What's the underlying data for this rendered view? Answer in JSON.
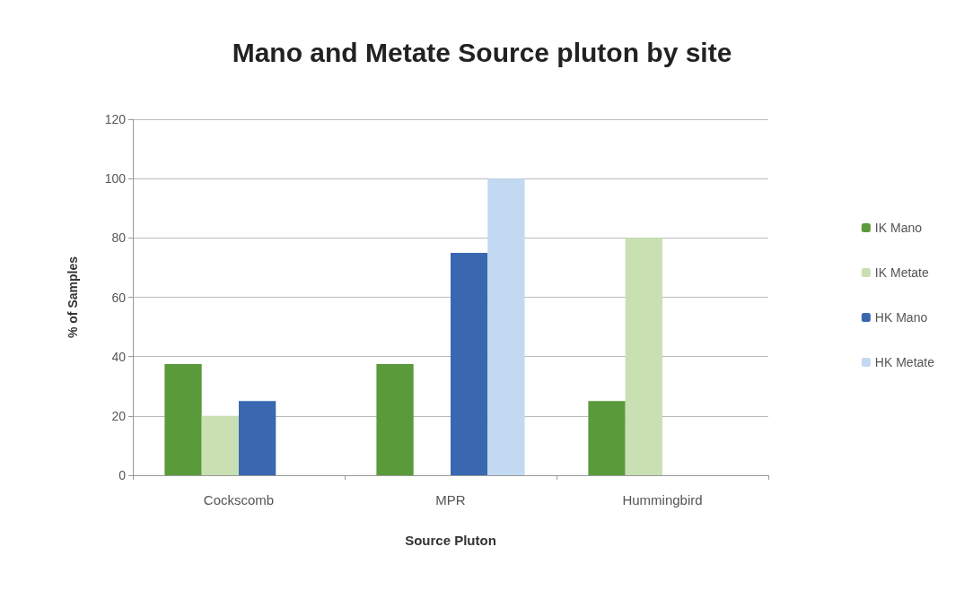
{
  "chart_data": {
    "type": "bar",
    "title": "Mano and Metate Source pluton by site",
    "xlabel": "Source Pluton",
    "ylabel": "% of Samples",
    "categories": [
      "Cockscomb",
      "MPR",
      "Hummingbird"
    ],
    "series": [
      {
        "name": "IK Mano",
        "color": "#5b9a3a",
        "values": [
          37.5,
          37.5,
          25
        ]
      },
      {
        "name": "IK Metate",
        "color": "#c8e0b2",
        "values": [
          20,
          0,
          80
        ]
      },
      {
        "name": "HK Mano",
        "color": "#3a68b0",
        "values": [
          25,
          75,
          0
        ]
      },
      {
        "name": "HK Metate",
        "color": "#c3d9f1",
        "values": [
          0,
          100,
          0
        ]
      }
    ],
    "ylim": [
      0,
      120
    ],
    "yticks": [
      0,
      20,
      40,
      60,
      80,
      100,
      120
    ],
    "grid": "y",
    "legend": "right"
  }
}
